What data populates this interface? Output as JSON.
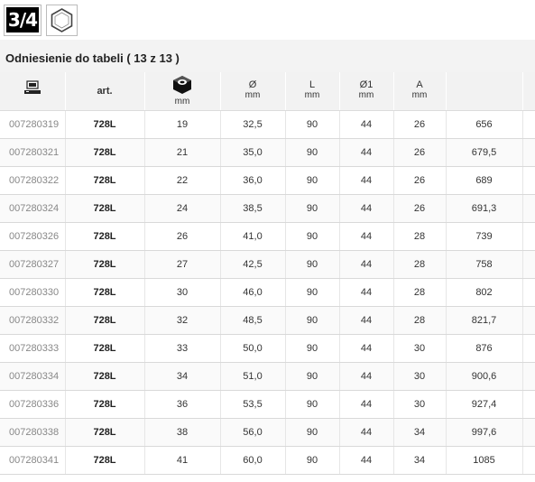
{
  "header": {
    "drive_badge": "3/4",
    "drive_badge_mark": "\"",
    "shape_icon": "hexagon-icon",
    "title": "Odniesienie do tabeli ( 13 z 13 )"
  },
  "columns": {
    "ref_icon": "computer-icon",
    "art": "art.",
    "size_icon": "hex-nut-icon",
    "size_unit": "mm",
    "d": "Ø",
    "d_unit": "mm",
    "l": "L",
    "l_unit": "mm",
    "d1": "Ø1",
    "d1_unit": "mm",
    "a": "A",
    "a_unit": "mm"
  },
  "rows": [
    {
      "ref": "007280319",
      "art": "728L",
      "size": "19",
      "d": "32,5",
      "l": "90",
      "d1": "44",
      "a": "26",
      "weight": "656"
    },
    {
      "ref": "007280321",
      "art": "728L",
      "size": "21",
      "d": "35,0",
      "l": "90",
      "d1": "44",
      "a": "26",
      "weight": "679,5"
    },
    {
      "ref": "007280322",
      "art": "728L",
      "size": "22",
      "d": "36,0",
      "l": "90",
      "d1": "44",
      "a": "26",
      "weight": "689"
    },
    {
      "ref": "007280324",
      "art": "728L",
      "size": "24",
      "d": "38,5",
      "l": "90",
      "d1": "44",
      "a": "26",
      "weight": "691,3"
    },
    {
      "ref": "007280326",
      "art": "728L",
      "size": "26",
      "d": "41,0",
      "l": "90",
      "d1": "44",
      "a": "28",
      "weight": "739"
    },
    {
      "ref": "007280327",
      "art": "728L",
      "size": "27",
      "d": "42,5",
      "l": "90",
      "d1": "44",
      "a": "28",
      "weight": "758"
    },
    {
      "ref": "007280330",
      "art": "728L",
      "size": "30",
      "d": "46,0",
      "l": "90",
      "d1": "44",
      "a": "28",
      "weight": "802"
    },
    {
      "ref": "007280332",
      "art": "728L",
      "size": "32",
      "d": "48,5",
      "l": "90",
      "d1": "44",
      "a": "28",
      "weight": "821,7"
    },
    {
      "ref": "007280333",
      "art": "728L",
      "size": "33",
      "d": "50,0",
      "l": "90",
      "d1": "44",
      "a": "30",
      "weight": "876"
    },
    {
      "ref": "007280334",
      "art": "728L",
      "size": "34",
      "d": "51,0",
      "l": "90",
      "d1": "44",
      "a": "30",
      "weight": "900,6"
    },
    {
      "ref": "007280336",
      "art": "728L",
      "size": "36",
      "d": "53,5",
      "l": "90",
      "d1": "44",
      "a": "30",
      "weight": "927,4"
    },
    {
      "ref": "007280338",
      "art": "728L",
      "size": "38",
      "d": "56,0",
      "l": "90",
      "d1": "44",
      "a": "34",
      "weight": "997,6"
    },
    {
      "ref": "007280341",
      "art": "728L",
      "size": "41",
      "d": "60,0",
      "l": "90",
      "d1": "44",
      "a": "34",
      "weight": "1085"
    }
  ]
}
